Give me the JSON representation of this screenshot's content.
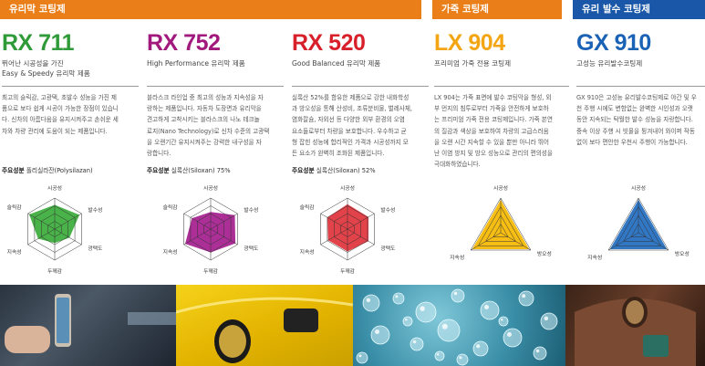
{
  "headers": {
    "glass_coating": "유리막 코팅제",
    "leather_coating": "가죽 코팅제",
    "water_repellent": "유리 발수 코팅제"
  },
  "products": [
    {
      "name": "RX 711",
      "color": "#2e9a38",
      "desc": [
        "뛰어난 시공성을 가진",
        "Easy & Speedy 유리막 제품"
      ],
      "body": [
        "최고의 슬릭감, 고광택, 초발수 성능을 가진 제",
        "품으로 보다 쉽게 시공이 가능한 장점이 있습니",
        "다. 신차의 아름다움을 유지시켜주고 손쉬운 세",
        "차와 차량 관리에 도움이 되는 제품입니다."
      ],
      "ingredient_label": "주요성분",
      "ingredient": "폴리실라잔(Polysilazan)",
      "radar_color": "#3aac3a",
      "radar_labels": [
        "시공성",
        "발수성",
        "광택도",
        "두께감",
        "지속성",
        "슬릭감"
      ],
      "radar_values": [
        0.78,
        0.92,
        0.55,
        0.45,
        0.62,
        0.95
      ]
    },
    {
      "name": "RX 752",
      "color": "#a1197d",
      "desc": [
        "High Performance 유리막 제품"
      ],
      "body": [
        "블라스크 라인업 중 최고의 성능과 지속성을 자",
        "랑하는 제품입니다. 자동차 도장면과 유리막을",
        "견고하게 고착시키는 블라스크의 나노 테크놀",
        "로지(Nano Technology)로 신차 수준의 고광택",
        "을 오랜기간 유지시켜주는 강력한 내구성을 자",
        "랑합니다."
      ],
      "ingredient_label": "주요성분",
      "ingredient": "실록산(Siloxan) 75%",
      "radar_color": "#a51d8f",
      "radar_labels": [
        "시공성",
        "발수성",
        "광택도",
        "두께감",
        "지속성",
        "슬릭감"
      ],
      "radar_values": [
        0.55,
        0.9,
        0.92,
        0.75,
        0.95,
        0.7
      ]
    },
    {
      "name": "RX 520",
      "color": "#d8202a",
      "desc": [
        "Good Balanced 유리막 제품"
      ],
      "body": [
        "실록산 52%를 함유한 제품으로 강한 내화학성",
        "과 방오성을 통해 산성비, 조류분비물, 벌레사체,",
        "염화칼슘, 자외선 등 다양한 외부 환경의 오염",
        "요소들로부터 차량을 보호합니다. 우수하고 균",
        "형 잡힌 성능에 합리적인 가격과 시공성까지 모",
        "든 요소가 완벽히 조화된 제품입니다."
      ],
      "ingredient_label": "주요성분",
      "ingredient": "실록산(Siloxan) 52%",
      "radar_color": "#e0323a",
      "radar_labels": [
        "시공성",
        "발수성",
        "광택도",
        "두께감",
        "지속성",
        "슬릭감"
      ],
      "radar_values": [
        0.8,
        0.78,
        0.78,
        0.72,
        0.72,
        0.75
      ]
    },
    {
      "name": "LX 904",
      "color": "#f3a514",
      "desc": [
        "프리미엄 가죽 전용 코팅제"
      ],
      "body": [
        "LX 904는 가죽 표면에 발수 코팅막을 형성, 외",
        "부 먼지의 침투로부터 가죽을 안전하게 보호하",
        "는 프리미엄 가죽 전용 코팅제입니다. 가죽 본연",
        "의 질감과 색상을 보호하여 차량의 고급스러움",
        "을 오랜 시간 지속할 수 있을 뿐만 아니라 뛰어",
        "난 이염 방지 및 방오 성능으로 관리의 편의성을",
        "극대화하였습니다."
      ],
      "radar_color": "#f5b800",
      "radar_labels": [
        "시공성",
        "방오성",
        "지속성"
      ],
      "radar_values": [
        0.95,
        0.95,
        0.95
      ]
    },
    {
      "name": "GX 910",
      "color": "#1a62b5",
      "desc": [
        "고성능 유리발수코팅제"
      ],
      "body": [
        "GX 910은 고성능 유리발수코팅제로 야간 및 우",
        "천 주행 시에도 변함없는 완벽한 시인성과 오랫",
        "동안 지속되는 탁월한 발수 성능을 자랑합니다.",
        "중속 이상 주행 시 빗물을 튕겨내어 와이퍼 작동",
        "없이 보다 편안한 우천시 주행이 가능합니다."
      ],
      "radar_color": "#1f6bbf",
      "radar_labels": [
        "시공성",
        "방오성",
        "지속성"
      ],
      "radar_values": [
        0.95,
        0.95,
        0.95
      ]
    }
  ]
}
